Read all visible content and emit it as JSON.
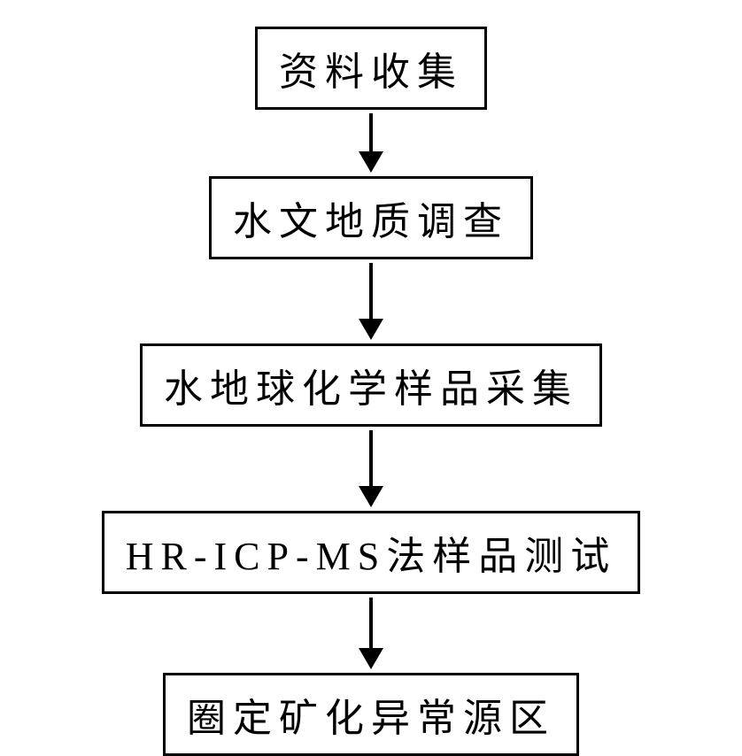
{
  "flowchart": {
    "type": "flowchart",
    "background_color": "#ffffff",
    "node_border_color": "#000000",
    "node_border_width": 3,
    "node_fill_color": "#ffffff",
    "node_text_color": "#000000",
    "node_font_size": 44,
    "node_letter_spacing": 8,
    "node_padding_vertical": 12,
    "node_padding_horizontal": 24,
    "arrow_color": "#000000",
    "arrow_line_width": 4,
    "arrow_head_width": 28,
    "arrow_head_height": 24,
    "nodes": [
      {
        "id": "n1",
        "label": "资料收集",
        "arrow_line_height": 44
      },
      {
        "id": "n2",
        "label": "水文地质调查",
        "arrow_line_height": 64
      },
      {
        "id": "n3",
        "label": "水地球化学样品采集",
        "arrow_line_height": 64
      },
      {
        "id": "n4",
        "label": "HR-ICP-MS法样品测试",
        "arrow_line_height": 58
      },
      {
        "id": "n5",
        "label": "圈定矿化异常源区",
        "arrow_line_height": 0
      }
    ],
    "edges": [
      {
        "from": "n1",
        "to": "n2"
      },
      {
        "from": "n2",
        "to": "n3"
      },
      {
        "from": "n3",
        "to": "n4"
      },
      {
        "from": "n4",
        "to": "n5"
      }
    ]
  }
}
